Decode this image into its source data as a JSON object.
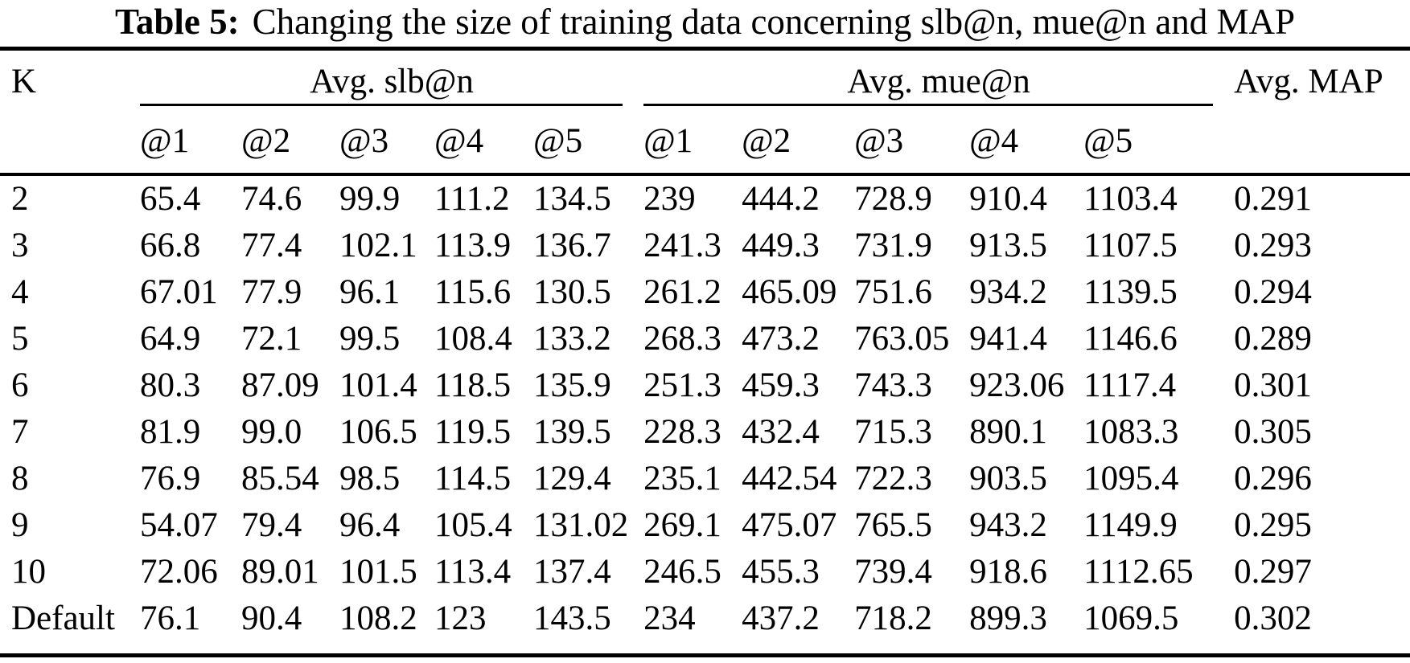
{
  "caption": {
    "label": "Table 5:",
    "text": "Changing the size of training data concerning slb@n, mue@n and MAP"
  },
  "table": {
    "k_header": "K",
    "slb_group_header": "Avg. slb@n",
    "mue_group_header": "Avg. mue@n",
    "map_header": "Avg. MAP",
    "slb_sub_headers": [
      "@1",
      "@2",
      "@3",
      "@4",
      "@5"
    ],
    "mue_sub_headers": [
      "@1",
      "@2",
      "@3",
      "@4",
      "@5"
    ],
    "rows": [
      {
        "k": "2",
        "slb": [
          "65.4",
          "74.6",
          "99.9",
          "111.2",
          "134.5"
        ],
        "mue": [
          "239",
          "444.2",
          "728.9",
          "910.4",
          "1103.4"
        ],
        "map": "0.291"
      },
      {
        "k": "3",
        "slb": [
          "66.8",
          "77.4",
          "102.1",
          "113.9",
          "136.7"
        ],
        "mue": [
          "241.3",
          "449.3",
          "731.9",
          "913.5",
          "1107.5"
        ],
        "map": "0.293"
      },
      {
        "k": "4",
        "slb": [
          "67.01",
          "77.9",
          "96.1",
          "115.6",
          "130.5"
        ],
        "mue": [
          "261.2",
          "465.09",
          "751.6",
          "934.2",
          "1139.5"
        ],
        "map": "0.294"
      },
      {
        "k": "5",
        "slb": [
          "64.9",
          "72.1",
          "99.5",
          "108.4",
          "133.2"
        ],
        "mue": [
          "268.3",
          "473.2",
          "763.05",
          "941.4",
          "1146.6"
        ],
        "map": "0.289"
      },
      {
        "k": "6",
        "slb": [
          "80.3",
          "87.09",
          "101.4",
          "118.5",
          "135.9"
        ],
        "mue": [
          "251.3",
          "459.3",
          "743.3",
          "923.06",
          "1117.4"
        ],
        "map": "0.301"
      },
      {
        "k": "7",
        "slb": [
          "81.9",
          "99.0",
          "106.5",
          "119.5",
          "139.5"
        ],
        "mue": [
          "228.3",
          "432.4",
          "715.3",
          "890.1",
          "1083.3"
        ],
        "map": "0.305"
      },
      {
        "k": "8",
        "slb": [
          "76.9",
          "85.54",
          "98.5",
          "114.5",
          "129.4"
        ],
        "mue": [
          "235.1",
          "442.54",
          "722.3",
          "903.5",
          "1095.4"
        ],
        "map": "0.296"
      },
      {
        "k": "9",
        "slb": [
          "54.07",
          "79.4",
          "96.4",
          "105.4",
          "131.02"
        ],
        "mue": [
          "269.1",
          "475.07",
          "765.5",
          "943.2",
          "1149.9"
        ],
        "map": "0.295"
      },
      {
        "k": "10",
        "slb": [
          "72.06",
          "89.01",
          "101.5",
          "113.4",
          "137.4"
        ],
        "mue": [
          "246.5",
          "455.3",
          "739.4",
          "918.6",
          "1112.65"
        ],
        "map": "0.297"
      },
      {
        "k": "Default",
        "slb": [
          "76.1",
          "90.4",
          "108.2",
          "123",
          "143.5"
        ],
        "mue": [
          "234",
          "437.2",
          "718.2",
          "899.3",
          "1069.5"
        ],
        "map": "0.302"
      }
    ]
  },
  "colors": {
    "background": "#ffffff",
    "text": "#000000",
    "rule": "#000000"
  }
}
